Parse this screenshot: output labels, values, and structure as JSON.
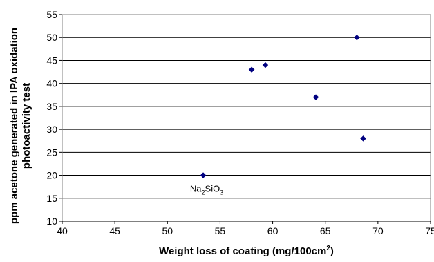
{
  "chart_data": {
    "type": "scatter",
    "title": "",
    "xlabel": "Weight loss of coating (mg/100cm",
    "xlabel_sup": "2",
    "xlabel_tail": ")",
    "ylabel_line1": "ppm acetone generated in IPA oxidation",
    "ylabel_line2": "photoactivity test",
    "xlim": [
      40,
      75
    ],
    "ylim": [
      10,
      55
    ],
    "xticks": [
      40,
      45,
      50,
      55,
      60,
      65,
      70,
      75
    ],
    "yticks": [
      10,
      15,
      20,
      25,
      30,
      35,
      40,
      45,
      50,
      55
    ],
    "grid": "horizontal",
    "marker": "diamond",
    "marker_color": "#000080",
    "points": [
      {
        "x": 53.4,
        "y": 20
      },
      {
        "x": 58.0,
        "y": 43
      },
      {
        "x": 59.3,
        "y": 44
      },
      {
        "x": 64.1,
        "y": 37
      },
      {
        "x": 68.0,
        "y": 50
      },
      {
        "x": 68.6,
        "y": 28
      }
    ],
    "annotations": [
      {
        "text_main": "Na",
        "sub1": "2",
        "text_mid": "SiO",
        "sub2": "3",
        "near_point": 0
      }
    ]
  }
}
